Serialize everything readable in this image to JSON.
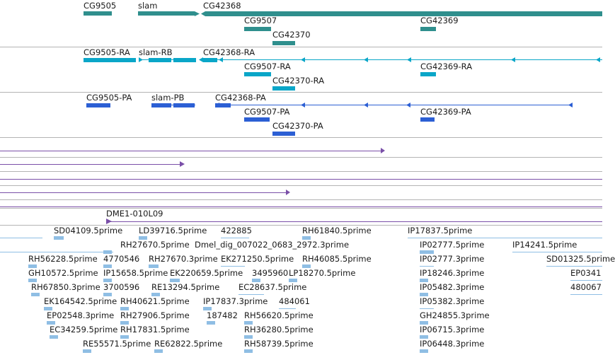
{
  "colors": {
    "gene": "#2f8f8d",
    "mrna": "#0aa6c8",
    "cds": "#2c5fd4",
    "clone": "#7a4fa8",
    "est": "#8fbee4",
    "separator": "#b4b4b4"
  },
  "gene_track": {
    "labels": [
      "CG9505",
      "slam",
      "CG42368",
      "CG9507",
      "CG42370",
      "CG42369"
    ]
  },
  "mrna_track": {
    "labels": [
      "CG9505-RA",
      "slam-RB",
      "CG42368-RA",
      "CG9507-RA",
      "CG42370-RA",
      "CG42369-RA"
    ]
  },
  "cds_track": {
    "labels": [
      "CG9505-PA",
      "slam-PB",
      "CG42368-PA",
      "CG9507-PA",
      "CG42370-PA",
      "CG42369-PA"
    ]
  },
  "clone_track": {
    "label": "DME1-010L09"
  },
  "est_track": {
    "labels": [
      "SD04109.5prime",
      "LD39716.5prime",
      "422885",
      "RH61840.5prime",
      "IP17837.5prime",
      "RH27670.5prime",
      "Dmel_dig_007022_0683_2972.3prime",
      "IP02777.5prime",
      "IP14241.5prime",
      "RH56228.5prime",
      "4770546",
      "RH27670.3prime",
      "EK271250.5prime",
      "RH46085.5prime",
      "IP02777.3prime",
      "SD01325.5prime",
      "GH10572.5prime",
      "IP15658.5prime",
      "EK220659.5prime",
      "3495960",
      "LP18270.5prime",
      "IP18246.3prime",
      "EP0341",
      "RH67850.3prime",
      "3700596",
      "RE13294.5prime",
      "EC28637.5prime",
      "IP05482.3prime",
      "480067",
      "EK164542.5prime",
      "RH40621.5prime",
      "IP17837.3prime",
      "484061",
      "IP05382.3prime",
      "EP02548.3prime",
      "RH27906.5prime",
      "187482",
      "RH56620.5prime",
      "GH24855.3prime",
      "EC34259.5prime",
      "RH17831.5prime",
      "RH36280.5prime",
      "IP06715.3prime",
      "RE55571.5prime",
      "RE62822.5prime",
      "RH58739.5prime",
      "IP06448.3prime"
    ]
  }
}
